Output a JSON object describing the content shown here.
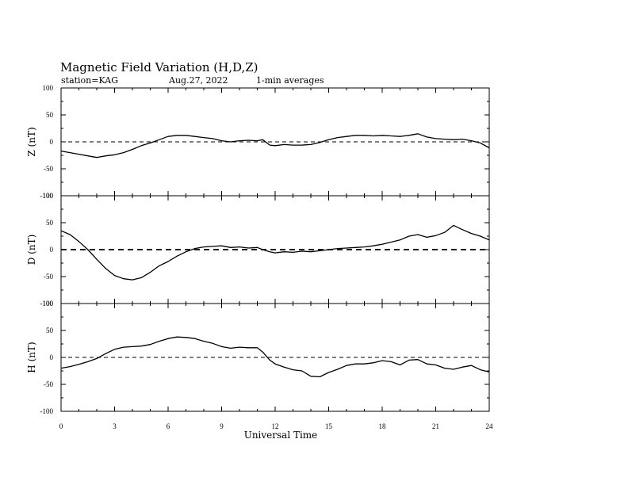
{
  "header": {
    "title": "Magnetic Field Variation (H,D,Z)",
    "station": "station=KAG",
    "date": "Aug.27, 2022",
    "averaging": "1-min averages"
  },
  "chart_data": {
    "type": "line",
    "xlabel": "Universal Time",
    "xlim": [
      0,
      24
    ],
    "xticks": [
      0,
      3,
      6,
      9,
      12,
      15,
      18,
      21,
      24
    ],
    "xtick_labels": [
      "0",
      "3",
      "6",
      "9",
      "12",
      "15",
      "18",
      "21",
      "24"
    ],
    "grid": false,
    "panels": [
      {
        "name": "Z",
        "ylabel": "Z (nT)",
        "ylim": [
          -100,
          100
        ],
        "yticks": [
          100,
          50,
          0,
          -50,
          -100
        ],
        "ytick_labels": [
          "100",
          "50",
          "0",
          "-50",
          "-100"
        ],
        "x": [
          0,
          0.5,
          1,
          1.5,
          2,
          2.5,
          3,
          3.5,
          4,
          4.5,
          5,
          5.5,
          6,
          6.5,
          7,
          7.5,
          8,
          8.5,
          9,
          9.5,
          10,
          10.5,
          11,
          11.3,
          11.7,
          12,
          12.5,
          13,
          13.5,
          14,
          14.5,
          15,
          15.5,
          16,
          16.5,
          17,
          17.5,
          18,
          18.5,
          19,
          19.5,
          20,
          20.5,
          21,
          21.5,
          22,
          22.5,
          23,
          23.5,
          24
        ],
        "y": [
          -17,
          -20,
          -23,
          -26,
          -29,
          -26,
          -24,
          -20,
          -14,
          -7,
          -2,
          4,
          10,
          12,
          12,
          10,
          8,
          6,
          2,
          0,
          2,
          3,
          2,
          4,
          -6,
          -7,
          -5,
          -6,
          -6,
          -5,
          -1,
          4,
          8,
          10,
          12,
          12,
          11,
          12,
          11,
          10,
          12,
          15,
          9,
          6,
          5,
          4,
          5,
          2,
          -2,
          -11
        ]
      },
      {
        "name": "D",
        "ylabel": "D (nT)",
        "ylim": [
          -100,
          100
        ],
        "yticks": [
          100,
          50,
          0,
          -50,
          -100
        ],
        "ytick_labels": [
          "100",
          "50",
          "0",
          "-50",
          "-100"
        ],
        "x": [
          0,
          0.5,
          1,
          1.5,
          2,
          2.5,
          3,
          3.5,
          4,
          4.5,
          5,
          5.5,
          6,
          6.5,
          7,
          7.5,
          8,
          8.5,
          9,
          9.5,
          10,
          10.5,
          11,
          11.3,
          11.7,
          12,
          12.5,
          13,
          13.5,
          14,
          14.5,
          15,
          15.5,
          16,
          16.5,
          17,
          17.5,
          18,
          18.5,
          19,
          19.5,
          20,
          20.5,
          21,
          21.5,
          22,
          22.5,
          23,
          23.5,
          24
        ],
        "y": [
          35,
          28,
          15,
          0,
          -18,
          -35,
          -48,
          -54,
          -56,
          -52,
          -42,
          -30,
          -22,
          -12,
          -4,
          2,
          5,
          6,
          7,
          4,
          5,
          3,
          4,
          0,
          -4,
          -6,
          -4,
          -5,
          -3,
          -4,
          -2,
          0,
          2,
          3,
          4,
          5,
          7,
          10,
          14,
          18,
          25,
          28,
          23,
          26,
          32,
          45,
          37,
          30,
          25,
          18
        ]
      },
      {
        "name": "H",
        "ylabel": "H (nT)",
        "ylim": [
          -100,
          100
        ],
        "yticks": [
          100,
          50,
          0,
          -50,
          -100
        ],
        "ytick_labels": [
          "100",
          "50",
          "0",
          "-50",
          "-100"
        ],
        "x": [
          0,
          0.5,
          1,
          1.5,
          2,
          2.5,
          3,
          3.5,
          4,
          4.5,
          5,
          5.5,
          6,
          6.5,
          7,
          7.5,
          8,
          8.5,
          9,
          9.5,
          10,
          10.5,
          11,
          11.3,
          11.7,
          12,
          12.5,
          13,
          13.5,
          14,
          14.5,
          15,
          15.5,
          16,
          16.5,
          17,
          17.5,
          18,
          18.5,
          19,
          19.5,
          20,
          20.5,
          21,
          21.5,
          22,
          22.5,
          23,
          23.5,
          24
        ],
        "y": [
          -20,
          -17,
          -13,
          -8,
          -2,
          7,
          15,
          19,
          20,
          21,
          24,
          30,
          35,
          38,
          37,
          35,
          30,
          26,
          20,
          17,
          19,
          18,
          18,
          10,
          -5,
          -12,
          -18,
          -23,
          -25,
          -35,
          -36,
          -28,
          -22,
          -15,
          -12,
          -12,
          -10,
          -6,
          -8,
          -14,
          -5,
          -4,
          -12,
          -14,
          -20,
          -22,
          -18,
          -15,
          -23,
          -27
        ]
      }
    ]
  }
}
